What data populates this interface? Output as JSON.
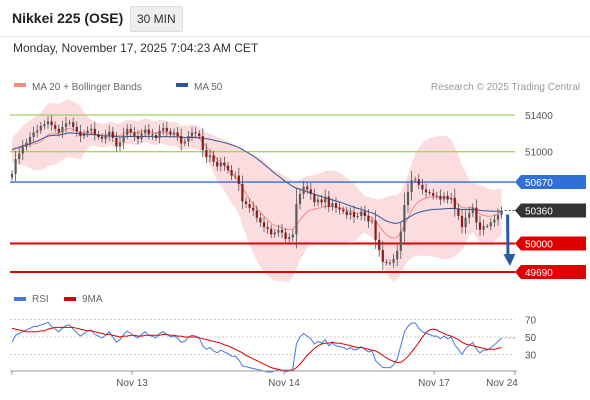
{
  "header": {
    "title": "Nikkei 225 (OSE)",
    "interval": "30 MIN"
  },
  "datetime": "Monday, November 17, 2025 7:04:23 AM CET",
  "legend_main": [
    {
      "label": "MA 20 + Bollinger Bands",
      "color": "#f28b82"
    },
    {
      "label": "MA 50",
      "color": "#2f5597"
    }
  ],
  "legend_rsi": [
    {
      "label": "RSI",
      "color": "#4a78d8"
    },
    {
      "label": "9MA",
      "color": "#dd0000"
    }
  ],
  "copyright": "Research © 2025 Trading Central",
  "chart_data": {
    "type": "candlestick",
    "x_labels": [
      "Nov 13",
      "Nov 14",
      "Nov 17",
      "Nov 24"
    ],
    "y_range": [
      49600,
      51500
    ],
    "last_price": 50360,
    "levels": [
      {
        "value": 51400,
        "label": "51400",
        "kind": "resistance_minor",
        "color": "#8cc63f"
      },
      {
        "value": 51000,
        "label": "51000",
        "kind": "resistance_minor",
        "color": "#8cc63f"
      },
      {
        "value": 50670,
        "label": "50670",
        "kind": "pivot",
        "color": "#2f6fd6"
      },
      {
        "value": 50360,
        "label": "50360",
        "kind": "last_price",
        "color": "#333333"
      },
      {
        "value": 50000,
        "label": "50000",
        "kind": "support",
        "color": "#dd0000"
      },
      {
        "value": 49690,
        "label": "49690",
        "kind": "support",
        "color": "#dd0000"
      }
    ],
    "projection": {
      "from": 50360,
      "to": 49690,
      "direction": "down"
    },
    "close": [
      50760,
      50920,
      50980,
      51050,
      51100,
      51160,
      51210,
      51230,
      51280,
      51300,
      51330,
      51290,
      51250,
      51210,
      51270,
      51310,
      51320,
      51270,
      51220,
      51170,
      51200,
      51230,
      51250,
      51190,
      51160,
      51140,
      51180,
      51220,
      51150,
      51060,
      51100,
      51180,
      51250,
      51210,
      51170,
      51140,
      51200,
      51240,
      51190,
      51180,
      51150,
      51230,
      51260,
      51220,
      51190,
      51210,
      51170,
      51090,
      51110,
      51170,
      51210,
      51200,
      51170,
      51020,
      50940,
      50960,
      50890,
      50840,
      50880,
      50850,
      50800,
      50740,
      50740,
      50650,
      50460,
      50430,
      50390,
      50360,
      50280,
      50230,
      50180,
      50160,
      50100,
      50120,
      50150,
      50120,
      50050,
      50070,
      50100,
      50430,
      50540,
      50620,
      50590,
      50540,
      50450,
      50480,
      50450,
      50510,
      50400,
      50440,
      50390,
      50370,
      50350,
      50310,
      50340,
      50290,
      50300,
      50350,
      50300,
      50240,
      50250,
      50040,
      49930,
      49800,
      49790,
      49790,
      49830,
      49920,
      50130,
      50420,
      50560,
      50690,
      50700,
      50640,
      50590,
      50560,
      50550,
      50520,
      50520,
      50480,
      50520,
      50480,
      50500,
      50380,
      50300,
      50180,
      50280,
      50330,
      50390,
      50230,
      50150,
      50190,
      50190,
      50230,
      50260,
      50310,
      50360
    ],
    "ma20": [
      51012,
      51034,
      51052,
      51068,
      51076,
      51081,
      51085,
      51091,
      51114,
      51146,
      51183,
      51195,
      51196,
      51200,
      51225,
      51248,
      51257,
      51240,
      51225,
      51207,
      51202,
      51204,
      51207,
      51194,
      51184,
      51176,
      51183,
      51198,
      51191,
      51173,
      51177,
      51200,
      51219,
      51213,
      51206,
      51203,
      51220,
      51233,
      51222,
      51208,
      51199,
      51216,
      51217,
      51200,
      51188,
      51197,
      51185,
      51156,
      51151,
      51160,
      51165,
      51160,
      51147,
      51100,
      51055,
      51021,
      50970,
      50918,
      50888,
      50851,
      50812,
      50767,
      50726,
      50678,
      50610,
      50541,
      50482,
      50432,
      50384,
      50343,
      50300,
      50260,
      50223,
      50195,
      50184,
      50172,
      50155,
      50152,
      50157,
      50204,
      50255,
      50305,
      50345,
      50368,
      50375,
      50385,
      50390,
      50406,
      50401,
      50405,
      50398,
      50390,
      50380,
      50363,
      50356,
      50338,
      50329,
      50331,
      50318,
      50297,
      50288,
      50242,
      50193,
      50135,
      50098,
      50071,
      50058,
      50070,
      50117,
      50203,
      50280,
      50360,
      50421,
      50459,
      50480,
      50496,
      50506,
      50508,
      50510,
      50500,
      50506,
      50495,
      50492,
      50458,
      50427,
      50392,
      50387,
      50389,
      50395,
      50357,
      50321,
      50307,
      50297,
      50299,
      50304,
      50326,
      50348
    ],
    "ma50": [
      51023,
      51039,
      51045,
      51061,
      51072,
      51090,
      51103,
      51117,
      51135,
      51153,
      51171,
      51176,
      51180,
      51181,
      51189,
      51198,
      51205,
      51203,
      51200,
      51193,
      51189,
      51187,
      51187,
      51184,
      51179,
      51172,
      51171,
      51172,
      51170,
      51165,
      51162,
      51163,
      51165,
      51167,
      51165,
      51163,
      51164,
      51168,
      51167,
      51165,
      51162,
      51164,
      51165,
      51165,
      51164,
      51163,
      51161,
      51158,
      51156,
      51155,
      51155,
      51154,
      51153,
      51149,
      51142,
      51136,
      51127,
      51117,
      51108,
      51098,
      51087,
      51074,
      51061,
      51045,
      51024,
      51002,
      50978,
      50953,
      50926,
      50896,
      50863,
      50831,
      50797,
      50764,
      50736,
      50706,
      50675,
      50648,
      50621,
      50604,
      50590,
      50578,
      50565,
      50552,
      50537,
      50524,
      50510,
      50500,
      50487,
      50475,
      50463,
      50452,
      50439,
      50424,
      50411,
      50397,
      50383,
      50373,
      50360,
      50346,
      50335,
      50315,
      50293,
      50267,
      50246,
      50232,
      50222,
      50220,
      50233,
      50258,
      50279,
      50303,
      50324,
      50339,
      50350,
      50359,
      50366,
      50371,
      50374,
      50374,
      50378,
      50380,
      50383,
      50381,
      50377,
      50371,
      50371,
      50371,
      50371,
      50366,
      50361,
      50358,
      50355,
      50353,
      50351,
      50351,
      50352
    ],
    "rsi": [
      44,
      52,
      54,
      56,
      58,
      60,
      62,
      62,
      64,
      65,
      67,
      62,
      59,
      56,
      60,
      63,
      64,
      59,
      55,
      51,
      54,
      57,
      58,
      53,
      51,
      49,
      52,
      56,
      50,
      44,
      47,
      53,
      57,
      54,
      51,
      49,
      53,
      56,
      52,
      51,
      49,
      54,
      56,
      53,
      50,
      51,
      49,
      44,
      45,
      50,
      52,
      51,
      49,
      40,
      36,
      38,
      34,
      32,
      35,
      33,
      31,
      28,
      28,
      24,
      17,
      16,
      15,
      14,
      13,
      12,
      11,
      10,
      10,
      11,
      13,
      12,
      10,
      11,
      14,
      42,
      50,
      54,
      51,
      48,
      42,
      45,
      43,
      47,
      40,
      43,
      40,
      39,
      38,
      36,
      38,
      35,
      36,
      39,
      36,
      33,
      34,
      23,
      19,
      15,
      15,
      15,
      18,
      25,
      40,
      56,
      62,
      66,
      66,
      60,
      56,
      54,
      53,
      51,
      51,
      48,
      51,
      48,
      50,
      41,
      36,
      30,
      37,
      40,
      44,
      36,
      32,
      35,
      35,
      38,
      41,
      45,
      49
    ],
    "rsi_ma": [
      60,
      59,
      58,
      57,
      56,
      56,
      56,
      56,
      57,
      57,
      59,
      60,
      61,
      61,
      61,
      61,
      61,
      61,
      60,
      59,
      58,
      57,
      57,
      56,
      55,
      54,
      53,
      53,
      52,
      51,
      50,
      51,
      51,
      52,
      52,
      51,
      51,
      52,
      52,
      52,
      52,
      52,
      53,
      53,
      52,
      52,
      51,
      51,
      50,
      50,
      50,
      50,
      49,
      48,
      47,
      46,
      45,
      44,
      43,
      41,
      40,
      38,
      36,
      34,
      32,
      29,
      27,
      25,
      23,
      21,
      19,
      17,
      15,
      14,
      13,
      12,
      12,
      12,
      12,
      15,
      19,
      24,
      29,
      33,
      37,
      40,
      42,
      43,
      43,
      44,
      43,
      43,
      42,
      41,
      40,
      39,
      38,
      38,
      37,
      36,
      35,
      34,
      32,
      29,
      26,
      24,
      22,
      21,
      21,
      24,
      28,
      33,
      38,
      44,
      50,
      55,
      58,
      59,
      58,
      56,
      54,
      52,
      51,
      49,
      47,
      44,
      42,
      41,
      40,
      39,
      38,
      37,
      36,
      36,
      36,
      37,
      38
    ],
    "rsi_levels": [
      70,
      50,
      30
    ]
  }
}
